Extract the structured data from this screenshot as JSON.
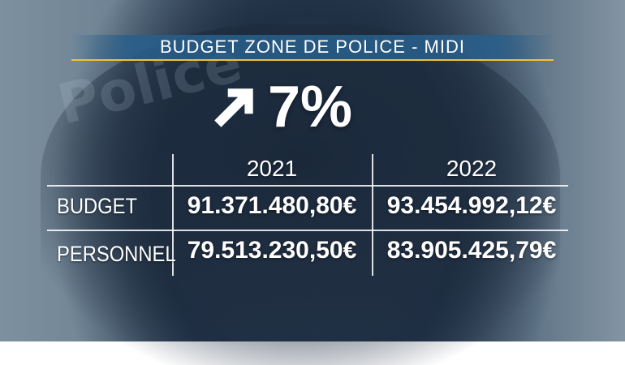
{
  "header": {
    "title": "BUDGET ZONE DE POLICE - MIDI"
  },
  "headline": {
    "arrow_icon": "arrow-up-right-icon",
    "percentage": "7%"
  },
  "table": {
    "columns": [
      "2021",
      "2022"
    ],
    "rows": [
      {
        "label": "BUDGET",
        "values": [
          "91.371.480,80€",
          "93.454.992,12€"
        ]
      },
      {
        "label": "PERSONNEL",
        "values": [
          "79.513.230,50€",
          "83.905.425,79€"
        ]
      }
    ]
  },
  "background": {
    "text": "Police"
  },
  "colors": {
    "accent_line": "#f1c232",
    "title_bar": "#285f8c",
    "text": "#ffffff"
  }
}
